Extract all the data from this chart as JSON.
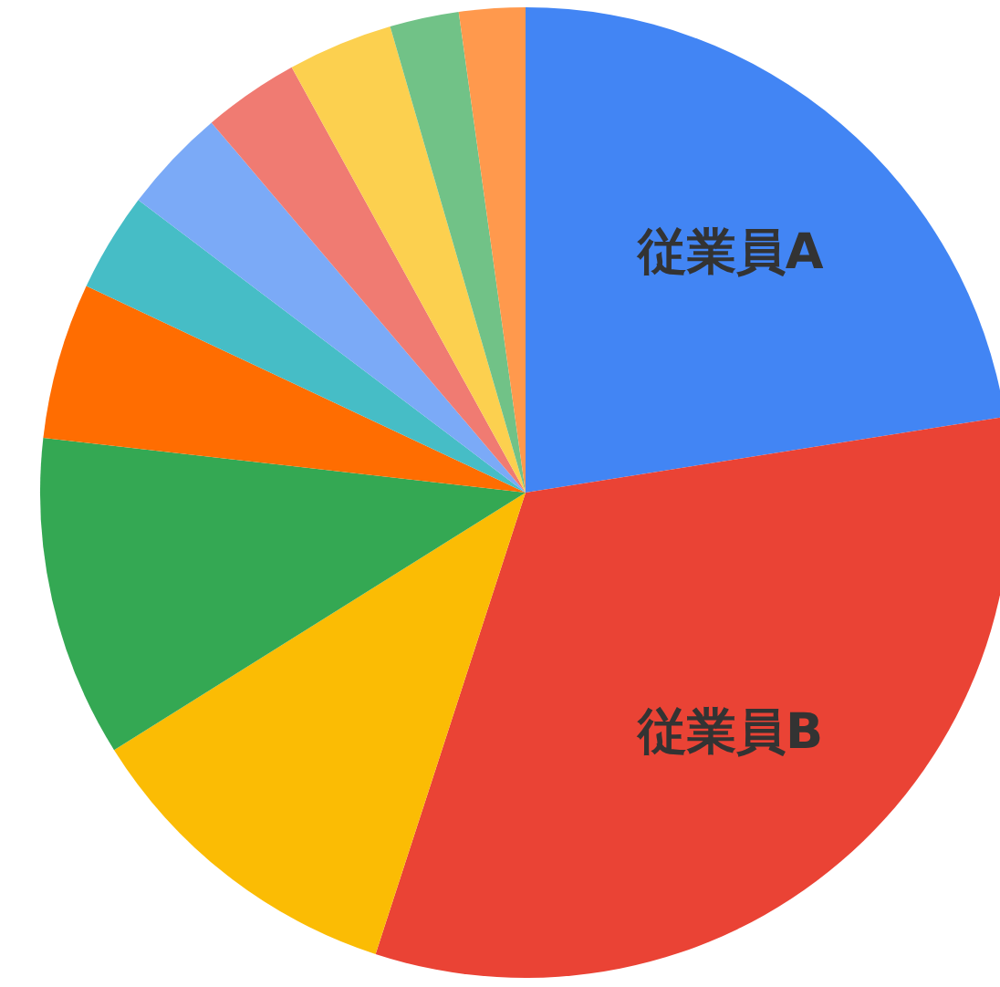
{
  "chart_data": {
    "type": "pie",
    "legend": false,
    "categories": [
      "従業員A",
      "従業員B",
      null,
      null,
      null,
      null,
      null,
      null,
      null,
      null,
      null
    ],
    "values": [
      22.5,
      32.5,
      11.1,
      10.7,
      5.2,
      3.3,
      3.5,
      3.2,
      3.5,
      2.3,
      2.2
    ],
    "colors": [
      "#4285f4",
      "#ea4335",
      "#fbbc04",
      "#34a853",
      "#ff6d01",
      "#46bdc6",
      "#7baaf7",
      "#f07b72",
      "#fcd04f",
      "#71c287",
      "#ff994d"
    ]
  }
}
